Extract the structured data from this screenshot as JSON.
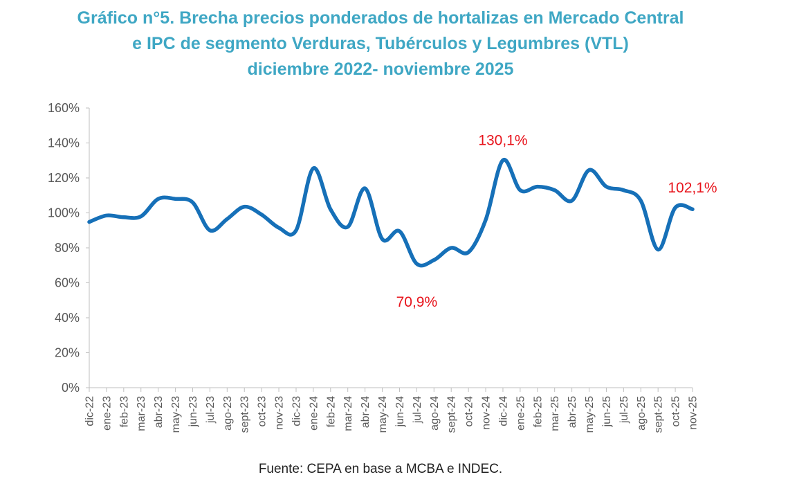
{
  "chart_data": {
    "type": "line",
    "title": [
      "Gráfico n°5. Brecha precios ponderados de hortalizas en Mercado Central",
      "e IPC de segmento Verduras, Tubérculos y Legumbres (VTL)",
      "diciembre 2022- noviembre 2025"
    ],
    "xlabel": "",
    "ylabel": "",
    "ylim": [
      0,
      160
    ],
    "yticks": [
      0,
      20,
      40,
      60,
      80,
      100,
      120,
      140,
      160
    ],
    "ytick_labels": [
      "0%",
      "20%",
      "40%",
      "60%",
      "80%",
      "100%",
      "120%",
      "140%",
      "160%"
    ],
    "categories": [
      "dic-22",
      "ene-23",
      "feb-23",
      "mar-23",
      "abr-23",
      "may-23",
      "jun-23",
      "jul-23",
      "ago-23",
      "sept-23",
      "oct-23",
      "nov-23",
      "dic-23",
      "ene-24",
      "feb-24",
      "mar-24",
      "abr-24",
      "may-24",
      "jun-24",
      "jul-24",
      "ago-24",
      "sept-24",
      "oct-24",
      "nov-24",
      "dic-24",
      "ene-25",
      "feb-25",
      "mar-25",
      "abr-25",
      "may-25",
      "jun-25",
      "jul-25",
      "ago-25",
      "sept-25",
      "oct-25",
      "nov-25"
    ],
    "series": [
      {
        "name": "Brecha",
        "color": "#1670b8",
        "values": [
          94.8,
          98.5,
          97.5,
          98,
          108,
          108,
          106,
          90,
          96.5,
          103.5,
          99,
          91.5,
          90,
          125.5,
          102,
          92,
          114,
          85,
          89.5,
          70.9,
          73,
          80,
          77.5,
          96,
          130.1,
          113,
          115,
          113,
          107,
          124.5,
          115,
          113,
          107,
          79,
          103,
          102.1
        ]
      }
    ],
    "annotations": [
      {
        "index": 24,
        "text": "130,1%",
        "color": "#e8141c"
      },
      {
        "index": 19,
        "text": "70,9%",
        "color": "#e8141c"
      },
      {
        "index": 35,
        "text": "102,1%",
        "color": "#e8141c"
      }
    ],
    "grid": false,
    "legend": "none"
  },
  "source": "Fuente: CEPA en base a MCBA e INDEC."
}
